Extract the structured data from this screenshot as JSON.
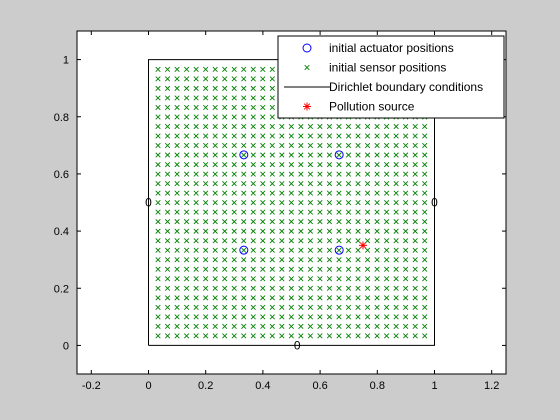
{
  "chart_data": {
    "type": "scatter",
    "title": "",
    "xlabel": "",
    "ylabel": "",
    "xlim": [
      -0.25,
      1.25
    ],
    "ylim": [
      -0.1,
      1.1
    ],
    "x_ticks": [
      -0.2,
      0,
      0.2,
      0.4,
      0.6,
      0.8,
      1,
      1.2
    ],
    "x_tick_labels": [
      "-0.2",
      "0",
      "0.2",
      "0.4",
      "0.6",
      "0.8",
      "1",
      "1.2"
    ],
    "y_ticks": [
      0,
      0.2,
      0.4,
      0.6,
      0.8,
      1
    ],
    "y_tick_labels": [
      "0",
      "0.2",
      "0.4",
      "0.6",
      "0.8",
      "1"
    ],
    "grid": false,
    "legend_position": "top-right",
    "colors": {
      "figure_background": "#cccccc",
      "axes_background": "#ffffff",
      "actuator": "#0000ff",
      "sensor": "#008000",
      "boundary": "#000000",
      "source": "#ff0000"
    },
    "series": [
      {
        "name": "initial actuator positions",
        "marker": "circle",
        "points": [
          [
            0.3333,
            0.3333
          ],
          [
            0.3333,
            0.6667
          ],
          [
            0.6667,
            0.3333
          ],
          [
            0.6667,
            0.6667
          ]
        ]
      },
      {
        "name": "initial sensor positions",
        "marker": "x",
        "grid": {
          "start": 0.0333,
          "end": 0.9667,
          "step": 0.0333
        }
      },
      {
        "name": "Dirichlet boundary conditions",
        "marker": "line",
        "points": [
          [
            0,
            0
          ],
          [
            1,
            0
          ],
          [
            1,
            1
          ],
          [
            0,
            1
          ],
          [
            0,
            0
          ]
        ]
      },
      {
        "name": "Pollution source",
        "marker": "star",
        "points": [
          [
            0.75,
            0.35
          ]
        ]
      }
    ],
    "annotations": [
      {
        "text": "0",
        "x": 0.52,
        "y": 0
      },
      {
        "text": "0",
        "x": 0,
        "y": 0.5
      },
      {
        "text": "0",
        "x": 1,
        "y": 0.5
      }
    ]
  }
}
